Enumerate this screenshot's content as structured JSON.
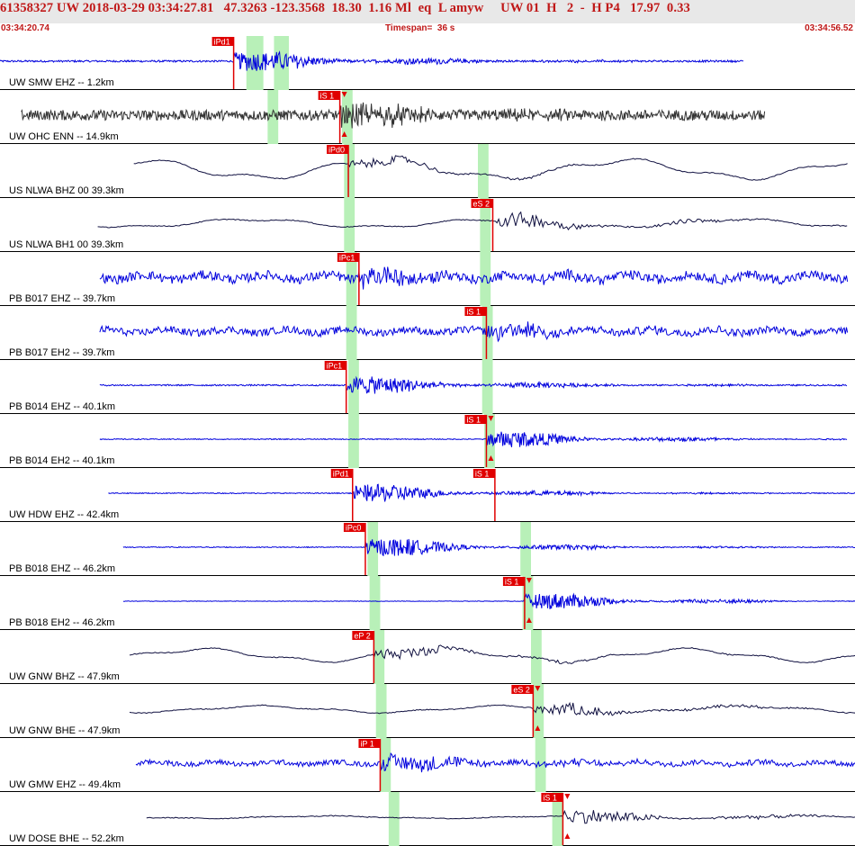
{
  "header": {
    "title": "61358327 UW 2018-03-29 03:34:27.81   47.3263 -123.3568  18.30  1.16 Ml  eq  L amyw     UW 01  H   2  -  H P4   17.97  0.33",
    "start_time": "03:34:20.74",
    "timespan": "Timespan=  36 s",
    "end_time": "03:34:56.52"
  },
  "colors": {
    "blue_trace": "#0000dd",
    "black_trace": "#333333",
    "dark_trace": "#101040",
    "pick_fill": "#e00000",
    "pick_window": "#b8f0b8",
    "header_bg": "#e8e8e8",
    "header_text": "#c01818"
  },
  "chart_data": {
    "type": "seismogram",
    "timespan_s": 36,
    "start_time": "03:34:20.74",
    "end_time": "03:34:56.52",
    "traces": [
      {
        "label": "UW SMW EHZ -- 1.2km",
        "color": "blue",
        "t_start": 0.0,
        "t_end": 35.0,
        "amp": 0.04,
        "burst_amp": 0.55,
        "noise": "hf",
        "picks": [
          {
            "label": "iPd1",
            "t": 11.0,
            "arrow": false
          }
        ],
        "windows": [
          11.6,
          12.4
        ],
        "window2": [
          12.9,
          13.6
        ]
      },
      {
        "label": "UW OHC ENN -- 14.9km",
        "color": "black",
        "t_start": 1.0,
        "t_end": 36.0,
        "amp": 0.22,
        "burst_amp": 0.55,
        "noise": "hf",
        "picks": [
          {
            "label": "iS 1",
            "t": 16.0,
            "arrow": true
          }
        ],
        "windows": [
          12.6,
          13.1
        ],
        "window2": [
          16.1,
          16.6
        ]
      },
      {
        "label": "US NLWA BHZ 00 39.3km",
        "color": "dark",
        "t_start": 6.3,
        "t_end": 39.9,
        "amp": 0.45,
        "burst_amp": 0.25,
        "noise": "lf",
        "picks": [
          {
            "label": "iPd0",
            "t": 16.4,
            "arrow": false
          }
        ],
        "windows": [
          16.2,
          16.7
        ],
        "window2": [
          22.5,
          23.0
        ]
      },
      {
        "label": "US NLWA BH1 00 39.3km",
        "color": "dark",
        "t_start": 4.6,
        "t_end": 39.9,
        "amp": 0.2,
        "burst_amp": 0.4,
        "noise": "lf",
        "picks": [
          {
            "label": "eS 2",
            "t": 23.2,
            "arrow": false
          }
        ],
        "windows": [
          16.2,
          16.7
        ],
        "window2": [
          22.6,
          23.1
        ]
      },
      {
        "label": "PB B017 EHZ -- 39.7km",
        "color": "blue",
        "t_start": 4.7,
        "t_end": 39.9,
        "amp": 0.28,
        "burst_amp": 0.45,
        "noise": "mf",
        "picks": [
          {
            "label": "iPc1",
            "t": 16.9,
            "arrow": false
          }
        ],
        "windows": [
          16.3,
          16.8
        ],
        "window2": [
          22.6,
          23.1
        ]
      },
      {
        "label": "PB B017 EH2 -- 39.7km",
        "color": "blue",
        "t_start": 4.7,
        "t_end": 39.9,
        "amp": 0.22,
        "burst_amp": 0.45,
        "noise": "mf",
        "picks": [
          {
            "label": "iS 1",
            "t": 22.9,
            "arrow": false
          }
        ],
        "windows": [
          16.3,
          16.8
        ],
        "window2": [
          22.7,
          23.2
        ]
      },
      {
        "label": "PB B014 EHZ -- 40.1km",
        "color": "blue",
        "t_start": 4.7,
        "t_end": 39.9,
        "amp": 0.03,
        "burst_amp": 0.5,
        "noise": "hf",
        "picks": [
          {
            "label": "iPc1",
            "t": 16.3,
            "arrow": false
          }
        ],
        "windows": [
          16.4,
          16.9
        ],
        "window2": [
          22.7,
          23.2
        ]
      },
      {
        "label": "PB B014 EH2 -- 40.1km",
        "color": "blue",
        "t_start": 4.7,
        "t_end": 39.9,
        "amp": 0.02,
        "burst_amp": 0.45,
        "noise": "hf",
        "picks": [
          {
            "label": "iS 1",
            "t": 22.9,
            "arrow": true
          }
        ],
        "windows": [
          16.4,
          16.9
        ],
        "window2": [
          22.8,
          23.3
        ]
      },
      {
        "label": "UW HDW EHZ -- 42.4km",
        "color": "blue",
        "t_start": 5.1,
        "t_end": 40.3,
        "amp": 0.02,
        "burst_amp": 0.5,
        "noise": "hf",
        "picks": [
          {
            "label": "iPd1",
            "t": 16.6,
            "arrow": false
          },
          {
            "label": "iS 1",
            "t": 23.3,
            "arrow": false
          }
        ],
        "windows": null,
        "window2": null
      },
      {
        "label": "PB B018 EHZ -- 46.2km",
        "color": "blue",
        "t_start": 5.8,
        "t_end": 40.9,
        "amp": 0.02,
        "burst_amp": 0.5,
        "noise": "hf",
        "picks": [
          {
            "label": "iPc0",
            "t": 17.2,
            "arrow": false
          }
        ],
        "windows": [
          17.3,
          17.8
        ],
        "window2": [
          24.5,
          25.0
        ]
      },
      {
        "label": "PB B018 EH2 -- 46.2km",
        "color": "blue",
        "t_start": 5.8,
        "t_end": 40.9,
        "amp": 0.01,
        "burst_amp": 0.45,
        "noise": "hf",
        "picks": [
          {
            "label": "iS 1",
            "t": 24.7,
            "arrow": true
          }
        ],
        "windows": [
          17.4,
          17.9
        ],
        "window2": [
          24.6,
          25.1
        ]
      },
      {
        "label": "UW GNW BHZ -- 47.9km",
        "color": "dark",
        "t_start": 6.1,
        "t_end": 41.1,
        "amp": 0.3,
        "burst_amp": 0.3,
        "noise": "lf",
        "picks": [
          {
            "label": "eP 2",
            "t": 17.6,
            "arrow": false
          }
        ],
        "windows": [
          17.6,
          18.1
        ],
        "window2": [
          25.0,
          25.5
        ]
      },
      {
        "label": "UW GNW BHE -- 47.9km",
        "color": "dark",
        "t_start": 6.1,
        "t_end": 41.1,
        "amp": 0.16,
        "burst_amp": 0.35,
        "noise": "lf",
        "picks": [
          {
            "label": "eS 2",
            "t": 25.1,
            "arrow": true
          }
        ],
        "windows": [
          17.7,
          18.2
        ],
        "window2": [
          25.1,
          25.6
        ]
      },
      {
        "label": "UW GMW EHZ -- 49.4km",
        "color": "blue",
        "t_start": 6.4,
        "t_end": 41.4,
        "amp": 0.15,
        "burst_amp": 0.45,
        "noise": "mf",
        "picks": [
          {
            "label": "iP 1",
            "t": 17.9,
            "arrow": false
          }
        ],
        "windows": [
          17.9,
          18.4
        ],
        "window2": [
          25.2,
          25.7
        ]
      },
      {
        "label": "UW DOSE BHE -- 52.2km",
        "color": "dark",
        "t_start": 6.9,
        "t_end": 41.7,
        "amp": 0.06,
        "burst_amp": 0.4,
        "noise": "lf",
        "picks": [
          {
            "label": "iS 1",
            "t": 26.5,
            "arrow": true
          }
        ],
        "windows": [
          18.3,
          18.8
        ],
        "window2": [
          26.0,
          26.5
        ]
      }
    ]
  }
}
